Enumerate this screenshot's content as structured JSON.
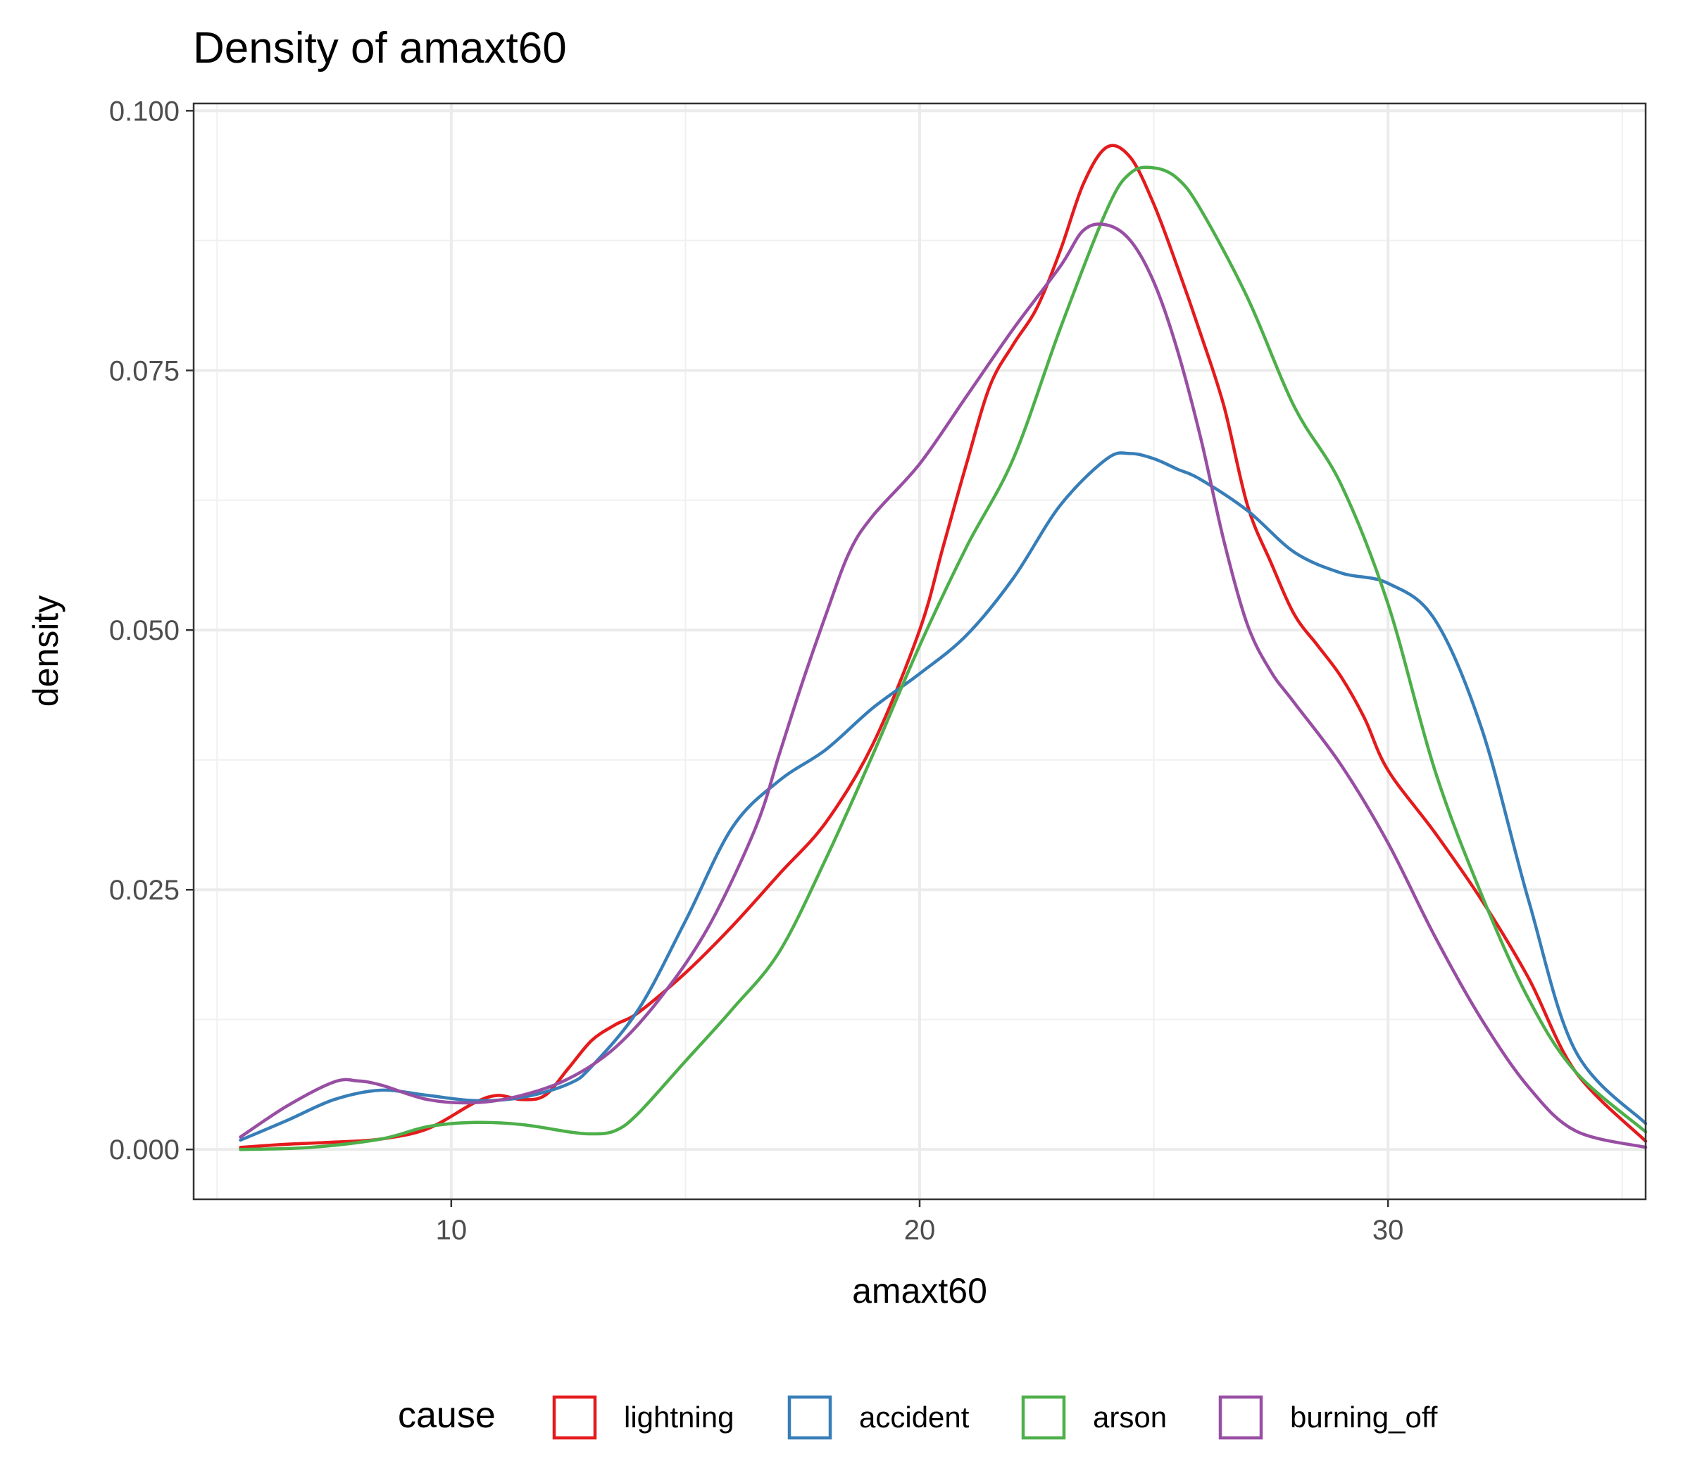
{
  "chart_data": {
    "type": "line",
    "title": "Density of amaxt60",
    "xlabel": "amaxt60",
    "ylabel": "density",
    "xlim": [
      4.5,
      35.5
    ],
    "ylim": [
      -0.0048,
      0.1007
    ],
    "x_ticks": [
      10,
      20,
      30
    ],
    "x_tick_labels": [
      "10",
      "20",
      "30"
    ],
    "x_minor_ticks": [
      5,
      15,
      25,
      35
    ],
    "y_ticks": [
      0.0,
      0.025,
      0.05,
      0.075,
      0.1
    ],
    "y_tick_labels": [
      "0.000",
      "0.025",
      "0.050",
      "0.075",
      "0.100"
    ],
    "y_minor_ticks": [
      0.0125,
      0.0375,
      0.0625,
      0.0875
    ],
    "grid": true,
    "legend": {
      "title": "cause",
      "position": "bottom"
    },
    "series": [
      {
        "name": "lightning",
        "color": "#E41A1C",
        "x": [
          5.5,
          6.5,
          7.5,
          8.5,
          9.5,
          10.5,
          11.0,
          11.5,
          12.0,
          12.5,
          13.0,
          13.5,
          14.0,
          15.0,
          16.0,
          17.0,
          18.0,
          19.0,
          20.0,
          20.5,
          21.0,
          21.5,
          22.0,
          22.5,
          23.0,
          23.5,
          24.0,
          24.5,
          25.0,
          25.5,
          26.0,
          26.5,
          27.0,
          27.5,
          28.0,
          28.5,
          29.0,
          29.5,
          30.0,
          31.0,
          32.0,
          33.0,
          34.0,
          35.5
        ],
        "y": [
          0.0002,
          0.0005,
          0.0007,
          0.001,
          0.002,
          0.0045,
          0.0052,
          0.0048,
          0.0052,
          0.0078,
          0.0105,
          0.012,
          0.0132,
          0.017,
          0.0215,
          0.0265,
          0.0315,
          0.039,
          0.05,
          0.058,
          0.066,
          0.0735,
          0.0775,
          0.081,
          0.0865,
          0.093,
          0.0965,
          0.0955,
          0.091,
          0.085,
          0.0785,
          0.0715,
          0.062,
          0.0565,
          0.0515,
          0.0485,
          0.0455,
          0.0415,
          0.0365,
          0.0305,
          0.024,
          0.0165,
          0.0075,
          0.0008
        ]
      },
      {
        "name": "accident",
        "color": "#377EB8",
        "x": [
          5.5,
          6.5,
          7.5,
          8.5,
          9.5,
          10.5,
          11.5,
          12.5,
          13.0,
          14.0,
          15.0,
          16.0,
          17.0,
          18.0,
          19.0,
          20.0,
          21.0,
          22.0,
          23.0,
          24.0,
          24.5,
          25.0,
          25.5,
          26.0,
          27.0,
          28.0,
          29.0,
          30.0,
          31.0,
          32.0,
          33.0,
          34.0,
          35.5
        ],
        "y": [
          0.0009,
          0.0028,
          0.0048,
          0.0057,
          0.0052,
          0.0047,
          0.005,
          0.0063,
          0.008,
          0.0135,
          0.022,
          0.031,
          0.0355,
          0.0385,
          0.0425,
          0.0458,
          0.0495,
          0.055,
          0.062,
          0.0665,
          0.067,
          0.0665,
          0.0655,
          0.0645,
          0.0615,
          0.0575,
          0.0555,
          0.0545,
          0.051,
          0.0405,
          0.024,
          0.0095,
          0.0025
        ]
      },
      {
        "name": "arson",
        "color": "#4DAF4A",
        "x": [
          5.5,
          7.0,
          8.5,
          9.5,
          10.5,
          11.5,
          12.5,
          13.0,
          13.5,
          14.0,
          15.0,
          16.0,
          17.0,
          18.0,
          19.0,
          20.0,
          21.0,
          22.0,
          23.0,
          24.0,
          24.5,
          25.0,
          25.5,
          26.0,
          27.0,
          28.0,
          29.0,
          30.0,
          31.0,
          32.0,
          33.0,
          34.0,
          35.5
        ],
        "y": [
          0.0,
          0.0002,
          0.001,
          0.0022,
          0.0026,
          0.0024,
          0.0017,
          0.0015,
          0.0018,
          0.0035,
          0.0085,
          0.0135,
          0.019,
          0.028,
          0.038,
          0.0485,
          0.058,
          0.0665,
          0.079,
          0.0905,
          0.094,
          0.0945,
          0.0935,
          0.0905,
          0.082,
          0.0715,
          0.064,
          0.0525,
          0.0365,
          0.0245,
          0.0145,
          0.0075,
          0.0017
        ]
      },
      {
        "name": "burning_off",
        "color": "#984EA3",
        "x": [
          5.5,
          6.5,
          7.5,
          8.0,
          8.5,
          9.5,
          10.5,
          11.5,
          12.5,
          13.5,
          14.5,
          15.5,
          16.5,
          17.0,
          17.5,
          18.0,
          18.5,
          19.0,
          20.0,
          21.0,
          22.0,
          23.0,
          23.5,
          24.0,
          24.5,
          25.0,
          25.5,
          26.0,
          26.5,
          27.0,
          27.5,
          28.0,
          29.0,
          30.0,
          31.0,
          32.0,
          33.0,
          34.0,
          35.5
        ],
        "y": [
          0.0012,
          0.0042,
          0.0065,
          0.0066,
          0.0062,
          0.0048,
          0.0045,
          0.0052,
          0.0068,
          0.0098,
          0.0148,
          0.0215,
          0.031,
          0.038,
          0.045,
          0.0515,
          0.0575,
          0.061,
          0.066,
          0.0725,
          0.079,
          0.085,
          0.0885,
          0.089,
          0.0875,
          0.0835,
          0.077,
          0.0685,
          0.0585,
          0.0505,
          0.046,
          0.043,
          0.037,
          0.0295,
          0.0205,
          0.0125,
          0.006,
          0.0018,
          0.0002
        ]
      }
    ]
  }
}
